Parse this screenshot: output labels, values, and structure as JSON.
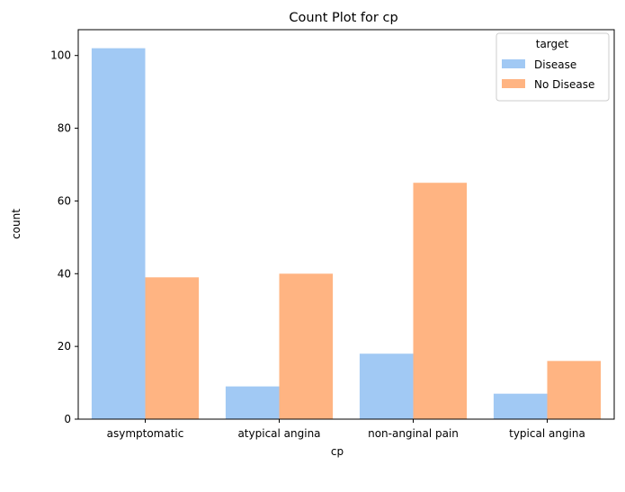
{
  "chart_data": {
    "type": "bar",
    "title": "Count Plot for cp",
    "xlabel": "cp",
    "ylabel": "count",
    "categories": [
      "asymptomatic",
      "atypical angina",
      "non-anginal pain",
      "typical angina"
    ],
    "series": [
      {
        "name": "Disease",
        "values": [
          102,
          9,
          18,
          7
        ],
        "color": "#a1c9f4"
      },
      {
        "name": "No Disease",
        "values": [
          39,
          40,
          65,
          16
        ],
        "color": "#ffb482"
      }
    ],
    "ylim": [
      0,
      107.1
    ],
    "yticks": [
      0,
      20,
      40,
      60,
      80,
      100
    ],
    "grid": false,
    "legend": {
      "title": "target",
      "position": "top-right"
    }
  }
}
